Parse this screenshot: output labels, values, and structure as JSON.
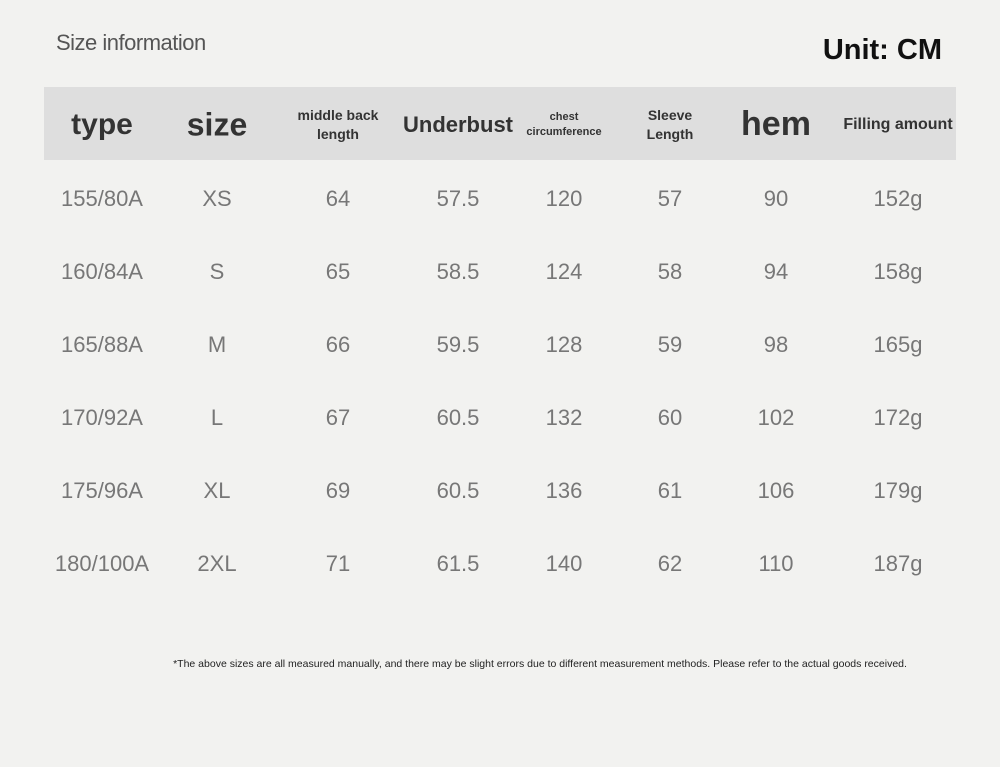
{
  "header": {
    "title": "Size information",
    "unit": "Unit: CM"
  },
  "table": {
    "columns": [
      {
        "lines": [
          "type"
        ],
        "size": 30
      },
      {
        "lines": [
          "size"
        ],
        "size": 32
      },
      {
        "lines": [
          "middle back",
          "length"
        ],
        "size": 14
      },
      {
        "lines": [
          "Underbust"
        ],
        "size": 22
      },
      {
        "lines": [
          "chest",
          "circumference"
        ],
        "size": 11
      },
      {
        "lines": [
          "Sleeve",
          "Length"
        ],
        "size": 14
      },
      {
        "lines": [
          "hem"
        ],
        "size": 34
      },
      {
        "lines": [
          "Filling amount"
        ],
        "size": 16
      }
    ],
    "rows": [
      [
        "155/80A",
        "XS",
        "64",
        "57.5",
        "120",
        "57",
        "90",
        "152g"
      ],
      [
        "160/84A",
        "S",
        "65",
        "58.5",
        "124",
        "58",
        "94",
        "158g"
      ],
      [
        "165/88A",
        "M",
        "66",
        "59.5",
        "128",
        "59",
        "98",
        "165g"
      ],
      [
        "170/92A",
        "L",
        "67",
        "60.5",
        "132",
        "60",
        "102",
        "172g"
      ],
      [
        "175/96A",
        "XL",
        "69",
        "60.5",
        "136",
        "61",
        "106",
        "179g"
      ],
      [
        "180/100A",
        "2XL",
        "71",
        "61.5",
        "140",
        "62",
        "110",
        "187g"
      ]
    ]
  },
  "footnote": "*The above sizes are all measured manually, and there may be slight errors due to different measurement methods. Please refer to the actual goods received."
}
